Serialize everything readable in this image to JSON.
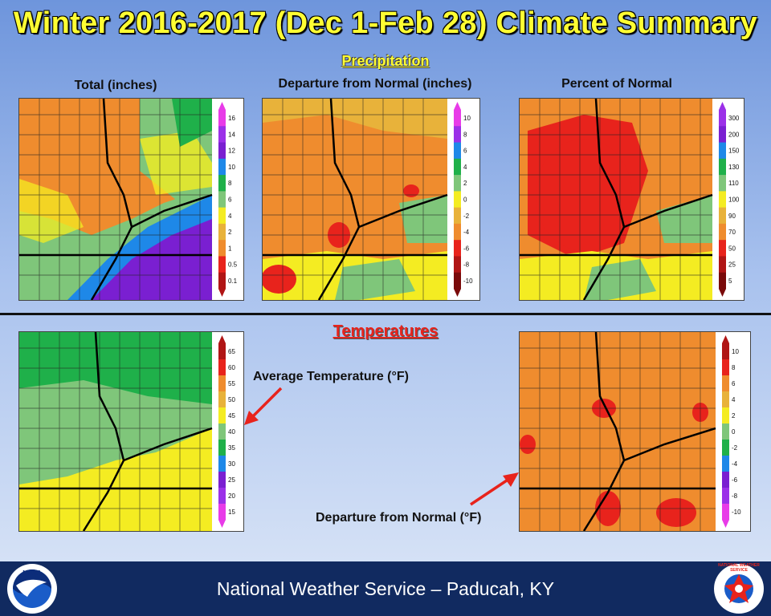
{
  "title": "Winter 2016-2017 (Dec 1-Feb 28) Climate Summary",
  "precipitation": {
    "heading": "Precipitation",
    "panels": [
      {
        "title": "Total (inches)",
        "legend": [
          "16",
          "14",
          "12",
          "10",
          "8",
          "6",
          "4",
          "2",
          "1",
          "0.5",
          "0.1"
        ],
        "legend_colors": [
          "#e83be8",
          "#9b30e8",
          "#7a1fd1",
          "#1e88e8",
          "#1fb04a",
          "#7fc67a",
          "#f4ec22",
          "#e8b23a",
          "#ef8c2e",
          "#e8231c",
          "#b01515"
        ]
      },
      {
        "title": "Departure from Normal (inches)",
        "legend": [
          "10",
          "8",
          "6",
          "4",
          "2",
          "0",
          "-2",
          "-4",
          "-6",
          "-8",
          "-10"
        ],
        "legend_colors": [
          "#e83be8",
          "#9b30e8",
          "#1e88e8",
          "#1fb04a",
          "#7fc67a",
          "#f4ec22",
          "#e8b23a",
          "#ef8c2e",
          "#e8231c",
          "#b01515",
          "#7a0a0a"
        ]
      },
      {
        "title": "Percent of Normal",
        "legend": [
          "300",
          "200",
          "150",
          "130",
          "110",
          "100",
          "90",
          "70",
          "50",
          "25",
          "5"
        ],
        "legend_colors": [
          "#9b30e8",
          "#7a1fd1",
          "#1e88e8",
          "#1fb04a",
          "#7fc67a",
          "#f4ec22",
          "#e8b23a",
          "#ef8c2e",
          "#e8231c",
          "#b01515",
          "#7a0a0a"
        ]
      }
    ]
  },
  "temperatures": {
    "heading": "Temperatures",
    "panels": [
      {
        "title": "Average Temperature (°F)",
        "legend": [
          "65",
          "60",
          "55",
          "50",
          "45",
          "40",
          "35",
          "30",
          "25",
          "20",
          "15"
        ],
        "legend_colors": [
          "#b01515",
          "#e8231c",
          "#ef8c2e",
          "#e8b23a",
          "#f4ec22",
          "#7fc67a",
          "#1fb04a",
          "#1e88e8",
          "#7a1fd1",
          "#9b30e8",
          "#e83be8"
        ]
      },
      {
        "title": "Departure from Normal (°F)",
        "legend": [
          "10",
          "8",
          "6",
          "4",
          "2",
          "0",
          "-2",
          "-4",
          "-6",
          "-8",
          "-10"
        ],
        "legend_colors": [
          "#b01515",
          "#e8231c",
          "#ef8c2e",
          "#e8b23a",
          "#f4ec22",
          "#7fc67a",
          "#1fb04a",
          "#1e88e8",
          "#7a1fd1",
          "#9b30e8",
          "#e83be8"
        ]
      }
    ]
  },
  "footer": "National Weather Service – Paducah, KY",
  "logos": {
    "left": "noaa-logo",
    "left_text": "NOAA",
    "right": "nws-logo",
    "right_text": "NATIONAL WEATHER SERVICE"
  }
}
